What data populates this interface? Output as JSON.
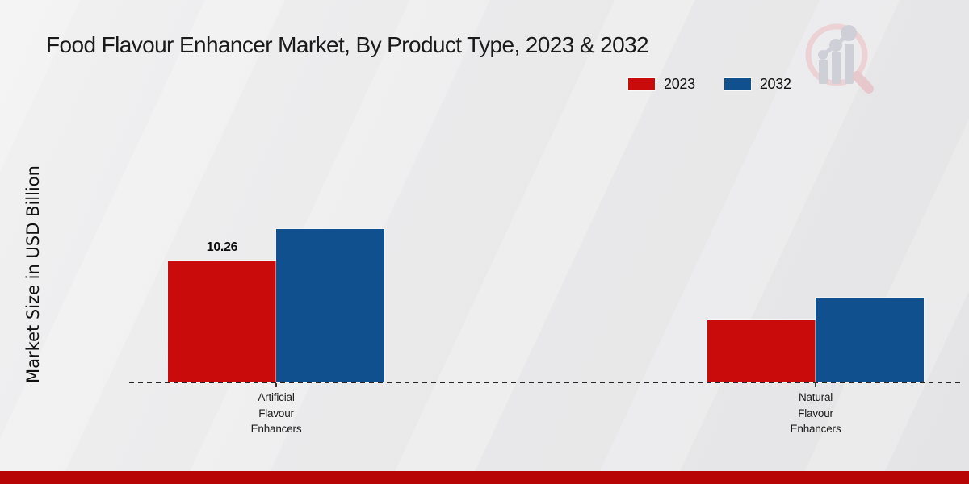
{
  "chart_data": {
    "type": "bar",
    "title": "Food Flavour Enhancer Market, By Product Type, 2023 & 2032",
    "ylabel": "Market Size in USD Billion",
    "xlabel": "",
    "categories": [
      "Artificial Flavour Enhancers",
      "Natural Flavour Enhancers"
    ],
    "series": [
      {
        "name": "2023",
        "color": "#c90b0b",
        "values": [
          10.26,
          5.2
        ]
      },
      {
        "name": "2032",
        "color": "#11508f",
        "values": [
          12.9,
          7.1
        ]
      }
    ],
    "value_labels": [
      {
        "series": "2023",
        "category_index": 0,
        "text": "10.26"
      }
    ],
    "ylim": [
      0,
      13.5
    ],
    "grid": false,
    "legend_position": "top-right",
    "baseline_style": "dashed"
  },
  "branding": {
    "logo": "magnifier-bar-chart-logo",
    "footer_color": "#b70505",
    "logo_ring_color": "#eccdd1",
    "logo_bar_color": "#c9cbd4"
  },
  "colors": {
    "title_text": "#1a1a1a",
    "axis_label_text": "#111111",
    "baseline_dash": "#262626"
  }
}
